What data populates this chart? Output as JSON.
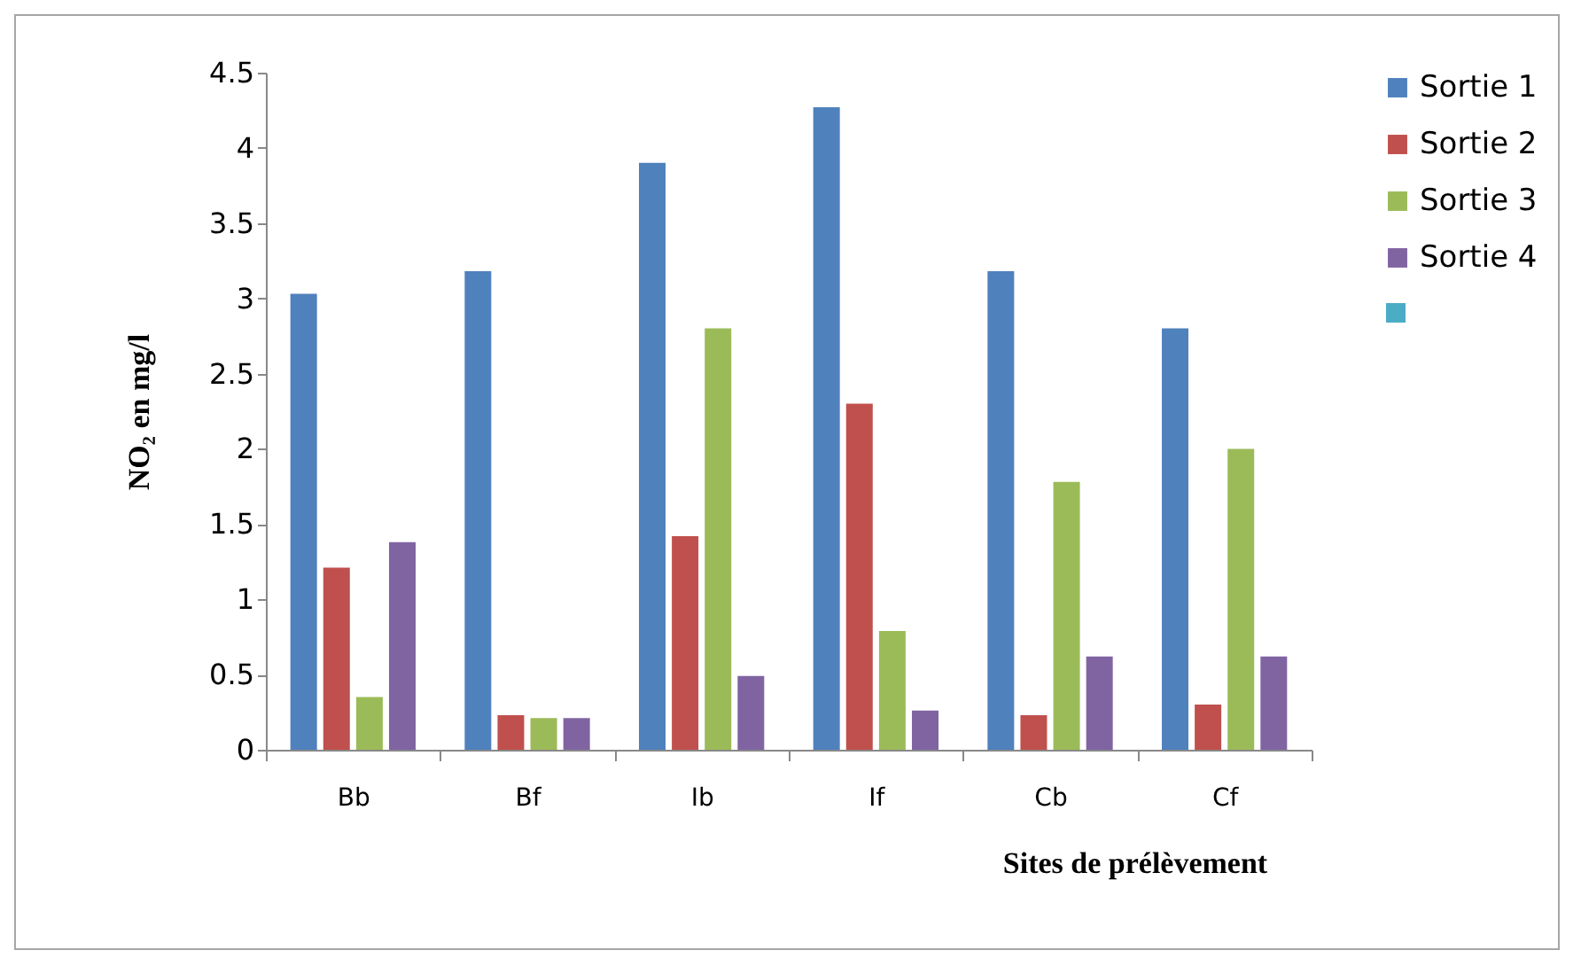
{
  "chart_data": {
    "type": "bar",
    "xlabel": "Sites de prélèvement",
    "ylabel": "NO₂ en mg/l",
    "categories": [
      "Bb",
      "Bf",
      "Ib",
      "If",
      "Cb",
      "Cf"
    ],
    "series": [
      {
        "name": "Sortie 1",
        "color": "#4f81bd",
        "values": [
          3.03,
          3.18,
          3.9,
          4.27,
          3.18,
          2.8
        ]
      },
      {
        "name": "Sortie 2",
        "color": "#c0504d",
        "values": [
          1.21,
          0.23,
          1.42,
          2.3,
          0.23,
          0.3
        ]
      },
      {
        "name": "Sortie 3",
        "color": "#9bbb59",
        "values": [
          0.35,
          0.21,
          2.8,
          0.79,
          1.78,
          2.0
        ]
      },
      {
        "name": "Sortie 4",
        "color": "#8064a2",
        "values": [
          1.38,
          0.21,
          0.49,
          0.26,
          0.62,
          0.62
        ]
      }
    ],
    "ylim": [
      0,
      4.5
    ],
    "yticks": [
      0,
      0.5,
      1,
      1.5,
      2,
      2.5,
      3,
      3.5,
      4,
      4.5
    ],
    "grid": false,
    "legend": "right"
  }
}
